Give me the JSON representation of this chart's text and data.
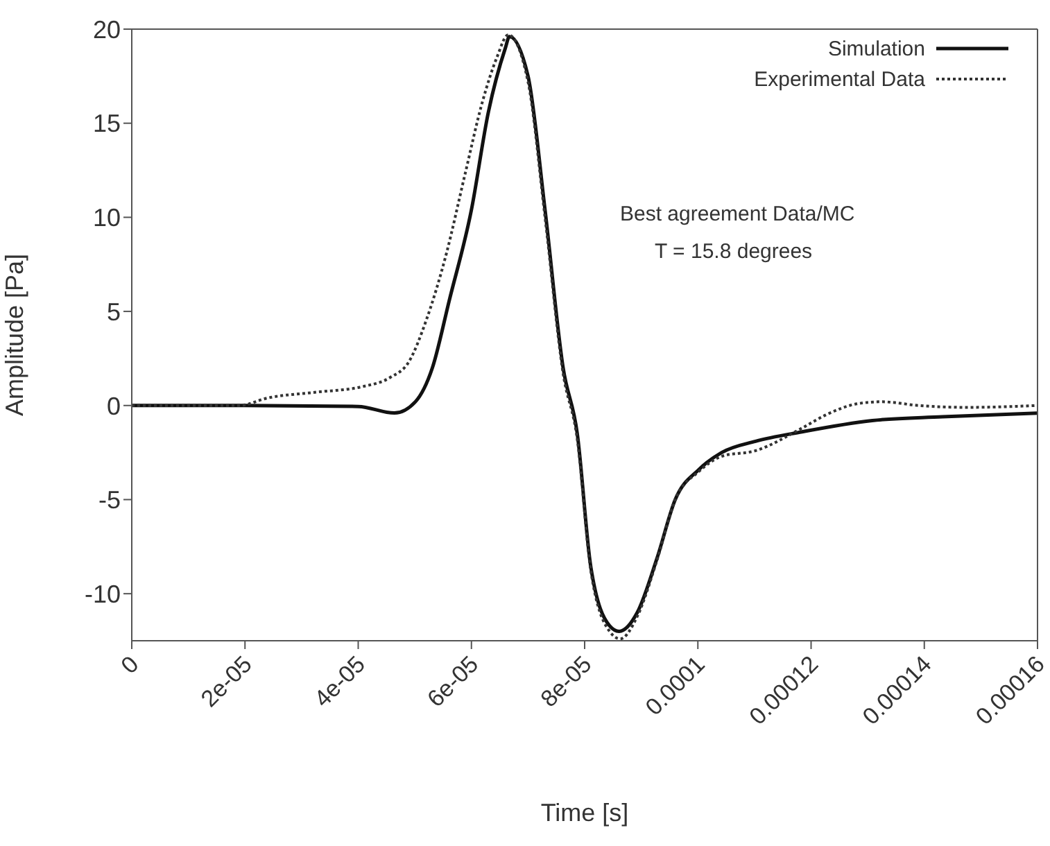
{
  "chart_data": {
    "type": "line",
    "xlabel": "Time [s]",
    "ylabel": "Amplitude [Pa]",
    "xlim": [
      0,
      0.00016
    ],
    "ylim": [
      -12.5,
      20
    ],
    "xticks": [
      0,
      {
        "value": 2e-05,
        "label": "2e-05"
      },
      {
        "value": 4e-05,
        "label": "4e-05"
      },
      {
        "value": 6e-05,
        "label": "6e-05"
      },
      {
        "value": 8e-05,
        "label": "8e-05"
      },
      0.0001,
      0.00012,
      0.00014,
      0.00016
    ],
    "yticks": [
      -10,
      -5,
      0,
      5,
      10,
      15,
      20
    ],
    "grid": false,
    "legend": "top right",
    "marker": "none",
    "annotations": [
      "Best agreement Data/MC",
      "T = 15.8 degrees"
    ],
    "series": [
      {
        "name": "Simulation",
        "color": "#111111",
        "line_style": "solid",
        "x": [
          0,
          2e-05,
          4e-05,
          4.64e-05,
          5.01e-05,
          5.31e-05,
          5.61e-05,
          6e-05,
          6.3e-05,
          6.6e-05,
          6.67e-05,
          7e-05,
          7.3e-05,
          7.62e-05,
          7.87e-05,
          8.11e-05,
          8.44e-05,
          8.61e-05,
          8.93e-05,
          9.28e-05,
          9.6e-05,
          0.0001002,
          0.0001042,
          0.0001102,
          0.0001184,
          0.0001308,
          0.0001432,
          0.00016
        ],
        "values": [
          0,
          0,
          -0.05,
          -0.4,
          0.2,
          2,
          5.6,
          10.4,
          15.6,
          19,
          19.6,
          17.5,
          10.4,
          2,
          -1.5,
          -8.6,
          -11.7,
          -12,
          -11,
          -8.1,
          -5,
          -3.4,
          -2.5,
          -1.9,
          -1.4,
          -0.8,
          -0.6,
          -0.4
        ]
      },
      {
        "name": "Experimental Data",
        "color": "#333333",
        "line_style": "dotted",
        "x": [
          0,
          1.9e-05,
          2.4e-05,
          3.23e-05,
          4.07e-05,
          4.57e-05,
          4.89e-05,
          5.21e-05,
          5.56e-05,
          5.88e-05,
          6.2e-05,
          6.45e-05,
          6.65e-05,
          7e-05,
          7.3e-05,
          7.62e-05,
          7.87e-05,
          8.11e-05,
          8.44e-05,
          8.63e-05,
          8.93e-05,
          9.28e-05,
          9.6e-05,
          0.0001002,
          0.0001042,
          0.0001102,
          0.0001184,
          0.0001226,
          0.0001283,
          0.0001325,
          0.000139,
          0.0001474,
          0.00016
        ],
        "values": [
          0,
          0,
          0.4,
          0.7,
          1.0,
          1.5,
          2.3,
          4.6,
          8.1,
          12.2,
          16.2,
          18.5,
          19.7,
          17.2,
          10,
          1.7,
          -1.8,
          -8.8,
          -12,
          -12.4,
          -11.2,
          -8.2,
          -5,
          -3.5,
          -2.7,
          -2.4,
          -1.2,
          -0.5,
          0.1,
          0.2,
          0,
          -0.1,
          0
        ]
      }
    ]
  }
}
